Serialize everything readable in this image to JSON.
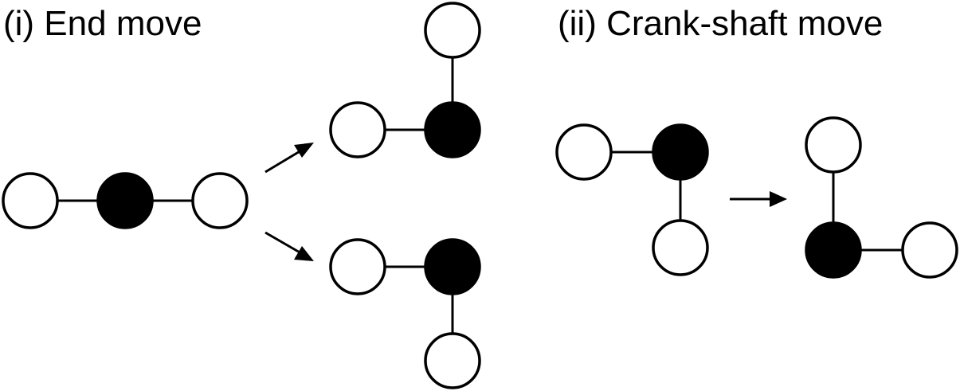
{
  "panels": [
    {
      "id": "end-move",
      "title": "(i) End move"
    },
    {
      "id": "crank-shaft-move",
      "title": "(ii) Crank-shaft move"
    }
  ],
  "colors": {
    "empty_bead": "#ffffff",
    "filled_bead": "#000000",
    "line": "#000000"
  }
}
